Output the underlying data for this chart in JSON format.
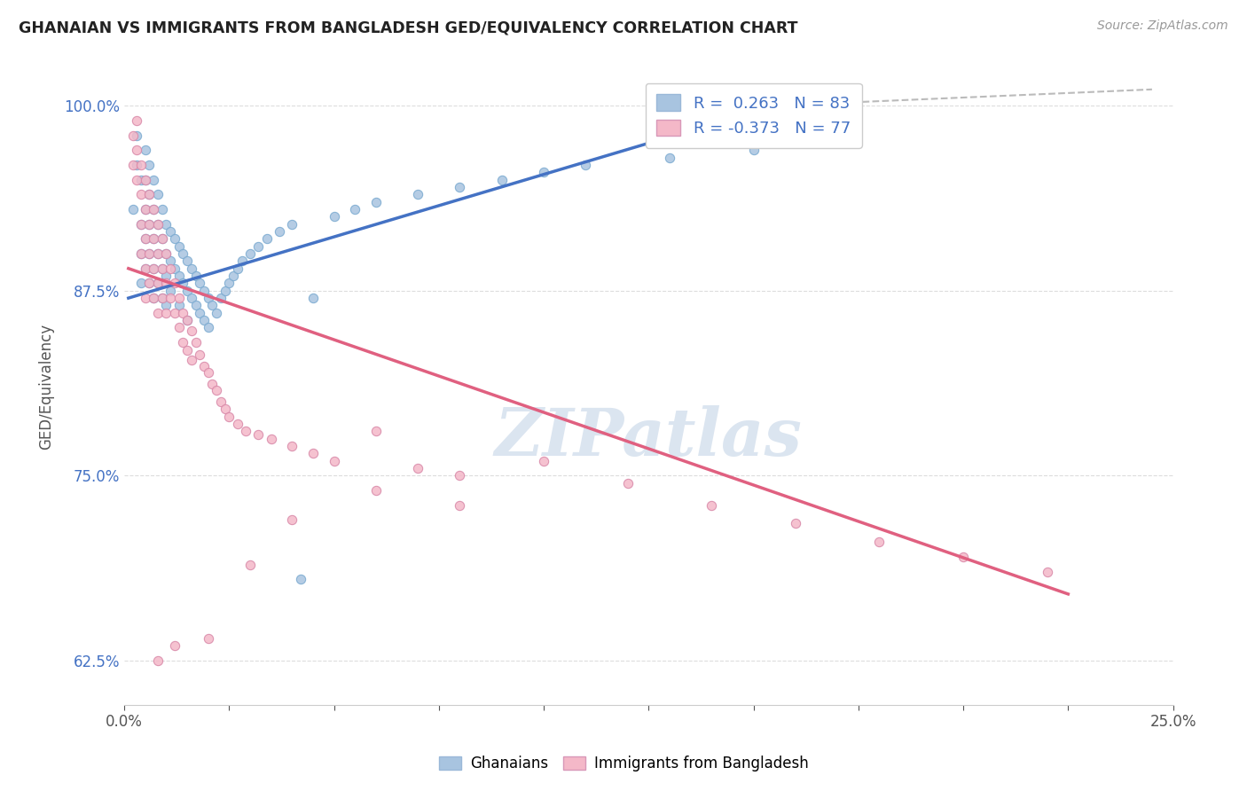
{
  "title": "GHANAIAN VS IMMIGRANTS FROM BANGLADESH GED/EQUIVALENCY CORRELATION CHART",
  "source_text": "Source: ZipAtlas.com",
  "ylabel": "GED/Equivalency",
  "xlim": [
    0.0,
    0.25
  ],
  "ylim": [
    0.595,
    1.025
  ],
  "yticks": [
    0.625,
    0.75,
    0.875,
    1.0
  ],
  "ytick_labels": [
    "62.5%",
    "75.0%",
    "87.5%",
    "100.0%"
  ],
  "xticks": [
    0.0,
    0.025,
    0.05,
    0.075,
    0.1,
    0.125,
    0.15,
    0.175,
    0.2,
    0.225,
    0.25
  ],
  "xtick_labels": [
    "0.0%",
    "",
    "",
    "",
    "",
    "",
    "",
    "",
    "",
    "",
    "25.0%"
  ],
  "legend_ghanaians_label": "Ghanaians",
  "legend_bangladesh_label": "Immigrants from Bangladesh",
  "R_ghanaian": 0.263,
  "N_ghanaian": 83,
  "R_bangladesh": -0.373,
  "N_bangladesh": 77,
  "ghanaian_color": "#a8c4e0",
  "ghanaian_line_color": "#4472c4",
  "bangladesh_color": "#f4b8c8",
  "bangladesh_line_color": "#e06080",
  "background_color": "#ffffff",
  "watermark_color": "#ccdaea",
  "ghanaian_points_x": [
    0.002,
    0.003,
    0.003,
    0.004,
    0.004,
    0.004,
    0.004,
    0.005,
    0.005,
    0.005,
    0.005,
    0.005,
    0.006,
    0.006,
    0.006,
    0.006,
    0.006,
    0.007,
    0.007,
    0.007,
    0.007,
    0.007,
    0.008,
    0.008,
    0.008,
    0.008,
    0.009,
    0.009,
    0.009,
    0.009,
    0.01,
    0.01,
    0.01,
    0.01,
    0.011,
    0.011,
    0.011,
    0.012,
    0.012,
    0.013,
    0.013,
    0.013,
    0.014,
    0.014,
    0.015,
    0.015,
    0.015,
    0.016,
    0.016,
    0.017,
    0.017,
    0.018,
    0.018,
    0.019,
    0.019,
    0.02,
    0.02,
    0.021,
    0.022,
    0.023,
    0.024,
    0.025,
    0.026,
    0.027,
    0.028,
    0.03,
    0.032,
    0.034,
    0.037,
    0.04,
    0.042,
    0.045,
    0.05,
    0.055,
    0.06,
    0.07,
    0.08,
    0.09,
    0.1,
    0.11,
    0.13,
    0.15,
    0.17
  ],
  "ghanaian_points_y": [
    0.93,
    0.96,
    0.98,
    0.95,
    0.92,
    0.9,
    0.88,
    0.97,
    0.95,
    0.93,
    0.91,
    0.89,
    0.96,
    0.94,
    0.92,
    0.9,
    0.88,
    0.95,
    0.93,
    0.91,
    0.89,
    0.87,
    0.94,
    0.92,
    0.9,
    0.88,
    0.93,
    0.91,
    0.89,
    0.87,
    0.92,
    0.9,
    0.885,
    0.865,
    0.915,
    0.895,
    0.875,
    0.91,
    0.89,
    0.905,
    0.885,
    0.865,
    0.9,
    0.88,
    0.895,
    0.875,
    0.855,
    0.89,
    0.87,
    0.885,
    0.865,
    0.88,
    0.86,
    0.875,
    0.855,
    0.87,
    0.85,
    0.865,
    0.86,
    0.87,
    0.875,
    0.88,
    0.885,
    0.89,
    0.895,
    0.9,
    0.905,
    0.91,
    0.915,
    0.92,
    0.68,
    0.87,
    0.925,
    0.93,
    0.935,
    0.94,
    0.945,
    0.95,
    0.955,
    0.96,
    0.965,
    0.97,
    0.975
  ],
  "bangladesh_points_x": [
    0.002,
    0.002,
    0.003,
    0.003,
    0.003,
    0.004,
    0.004,
    0.004,
    0.004,
    0.005,
    0.005,
    0.005,
    0.005,
    0.005,
    0.006,
    0.006,
    0.006,
    0.006,
    0.007,
    0.007,
    0.007,
    0.007,
    0.008,
    0.008,
    0.008,
    0.008,
    0.009,
    0.009,
    0.009,
    0.01,
    0.01,
    0.01,
    0.011,
    0.011,
    0.012,
    0.012,
    0.013,
    0.013,
    0.014,
    0.014,
    0.015,
    0.015,
    0.016,
    0.016,
    0.017,
    0.018,
    0.019,
    0.02,
    0.021,
    0.022,
    0.023,
    0.024,
    0.025,
    0.027,
    0.029,
    0.032,
    0.035,
    0.04,
    0.045,
    0.05,
    0.06,
    0.07,
    0.08,
    0.1,
    0.12,
    0.14,
    0.16,
    0.18,
    0.2,
    0.22,
    0.008,
    0.012,
    0.02,
    0.03,
    0.04,
    0.06,
    0.08
  ],
  "bangladesh_points_y": [
    0.96,
    0.98,
    0.95,
    0.97,
    0.99,
    0.94,
    0.96,
    0.92,
    0.9,
    0.95,
    0.93,
    0.91,
    0.89,
    0.87,
    0.94,
    0.92,
    0.9,
    0.88,
    0.93,
    0.91,
    0.89,
    0.87,
    0.92,
    0.9,
    0.88,
    0.86,
    0.91,
    0.89,
    0.87,
    0.9,
    0.88,
    0.86,
    0.89,
    0.87,
    0.88,
    0.86,
    0.87,
    0.85,
    0.86,
    0.84,
    0.855,
    0.835,
    0.848,
    0.828,
    0.84,
    0.832,
    0.824,
    0.82,
    0.812,
    0.808,
    0.8,
    0.795,
    0.79,
    0.785,
    0.78,
    0.778,
    0.775,
    0.77,
    0.765,
    0.76,
    0.78,
    0.755,
    0.75,
    0.76,
    0.745,
    0.73,
    0.718,
    0.705,
    0.695,
    0.685,
    0.625,
    0.635,
    0.64,
    0.69,
    0.72,
    0.74,
    0.73
  ],
  "blue_trend_x": [
    0.001,
    0.155
  ],
  "blue_trend_y": [
    0.87,
    1.0
  ],
  "pink_trend_x": [
    0.001,
    0.225
  ],
  "pink_trend_y": [
    0.89,
    0.67
  ]
}
